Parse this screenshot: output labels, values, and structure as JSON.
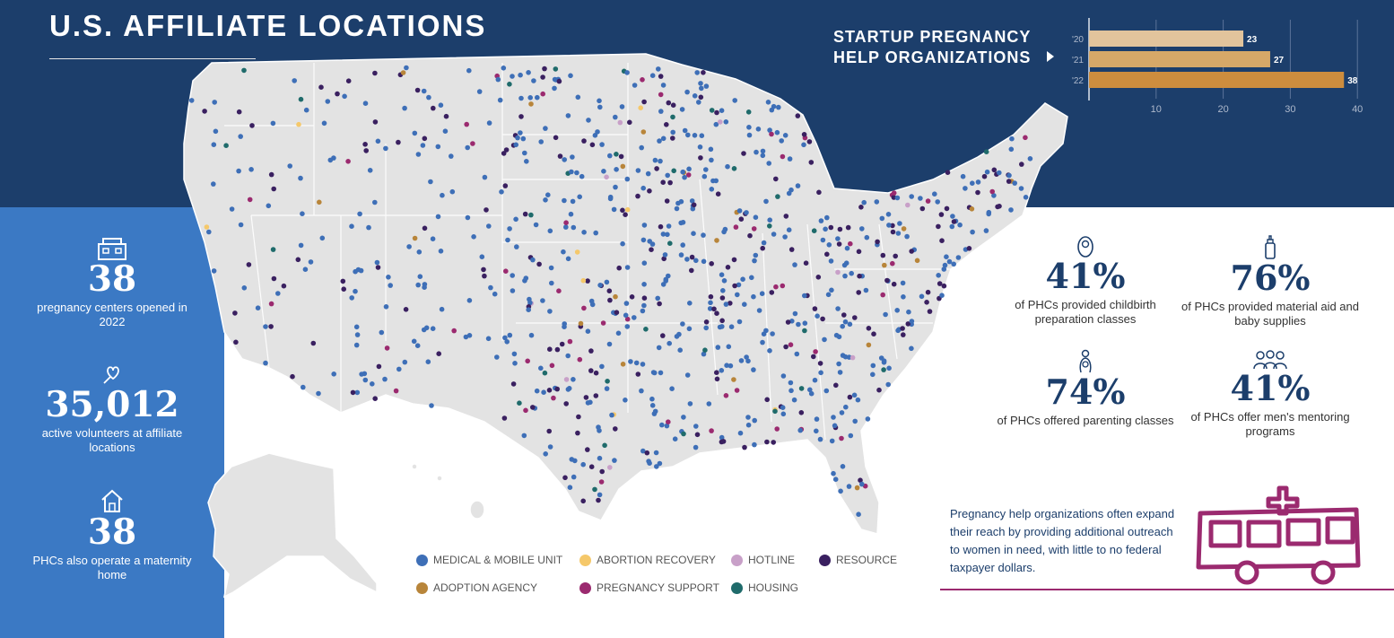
{
  "header": {
    "title": "U.S. AFFILIATE LOCATIONS"
  },
  "left_stats": [
    {
      "icon": "building-icon",
      "value": "38",
      "label": "pregnancy centers opened in 2022"
    },
    {
      "icon": "heart-hand-icon",
      "value": "35,012",
      "label": "active volunteers at affiliate locations"
    },
    {
      "icon": "house-icon",
      "value": "38",
      "label": "PHCs also operate a maternity home"
    }
  ],
  "right_stats": [
    {
      "icon": "baby-icon",
      "value": "41%",
      "label": "of PHCs provided childbirth preparation classes"
    },
    {
      "icon": "bottle-icon",
      "value": "76%",
      "label": "of PHCs provided material aid and baby supplies"
    },
    {
      "icon": "parent-icon",
      "value": "74%",
      "label": "of PHCs offered parenting classes"
    },
    {
      "icon": "group-icon",
      "value": "41%",
      "label": "of PHCs offer men's mentoring programs"
    }
  ],
  "note": "Pregnancy help organizations often expand their reach by providing additional outreach to women in need, with little to no federal taxpayer dollars.",
  "legend": [
    {
      "name": "MEDICAL & MOBILE UNIT",
      "color": "#3e6fb7"
    },
    {
      "name": "ADOPTION AGENCY",
      "color": "#b8853a"
    },
    {
      "name": "ABORTION RECOVERY",
      "color": "#f5c86a"
    },
    {
      "name": "PREGNANCY SUPPORT",
      "color": "#9b2a6f"
    },
    {
      "name": "HOTLINE",
      "color": "#c8a0c8"
    },
    {
      "name": "HOUSING",
      "color": "#1f6b6b"
    },
    {
      "name": "RESOURCE",
      "color": "#3a2060"
    }
  ],
  "colors": {
    "navy": "#1c3e6b",
    "blue_panel": "#3b79c4",
    "map_fill": "#e3e3e3",
    "bar_light": "#e2c49c",
    "bar_mid": "#d6a868",
    "bar_dark": "#cd8d3e",
    "accent_magenta": "#9b2a6f"
  },
  "chart_data": {
    "type": "bar",
    "orientation": "horizontal",
    "title": "STARTUP PREGNANCY HELP ORGANIZATIONS",
    "categories": [
      "'20",
      "'21",
      "'22"
    ],
    "values": [
      23,
      27,
      38
    ],
    "xticks": [
      10,
      20,
      30,
      40
    ],
    "xlim": [
      0,
      40
    ],
    "grid": true
  }
}
